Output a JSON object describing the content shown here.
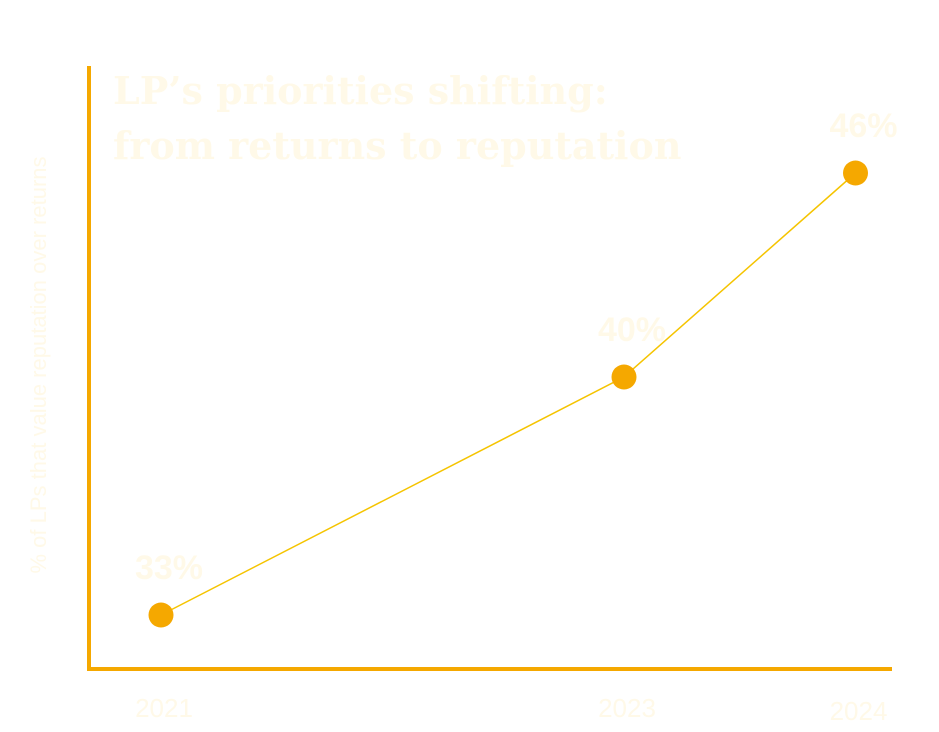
{
  "colors": {
    "axis": "#F5A800",
    "line": "#F5C400",
    "marker": "#F5A800",
    "text": "#FFF9E8",
    "background": "#FFFFFF"
  },
  "chart_data": {
    "type": "line",
    "title_lines": [
      "LP’s priorities shifting:",
      "from returns to reputation"
    ],
    "ylabel": "% of LPs that value reputation over returns",
    "xlabel": "",
    "categories": [
      "2021",
      "2023",
      "2024"
    ],
    "x": [
      2021,
      2023,
      2024
    ],
    "values": [
      33,
      40,
      46
    ],
    "data_labels": [
      "33%",
      "40%",
      "46%"
    ],
    "grid": false,
    "legend": "none"
  }
}
